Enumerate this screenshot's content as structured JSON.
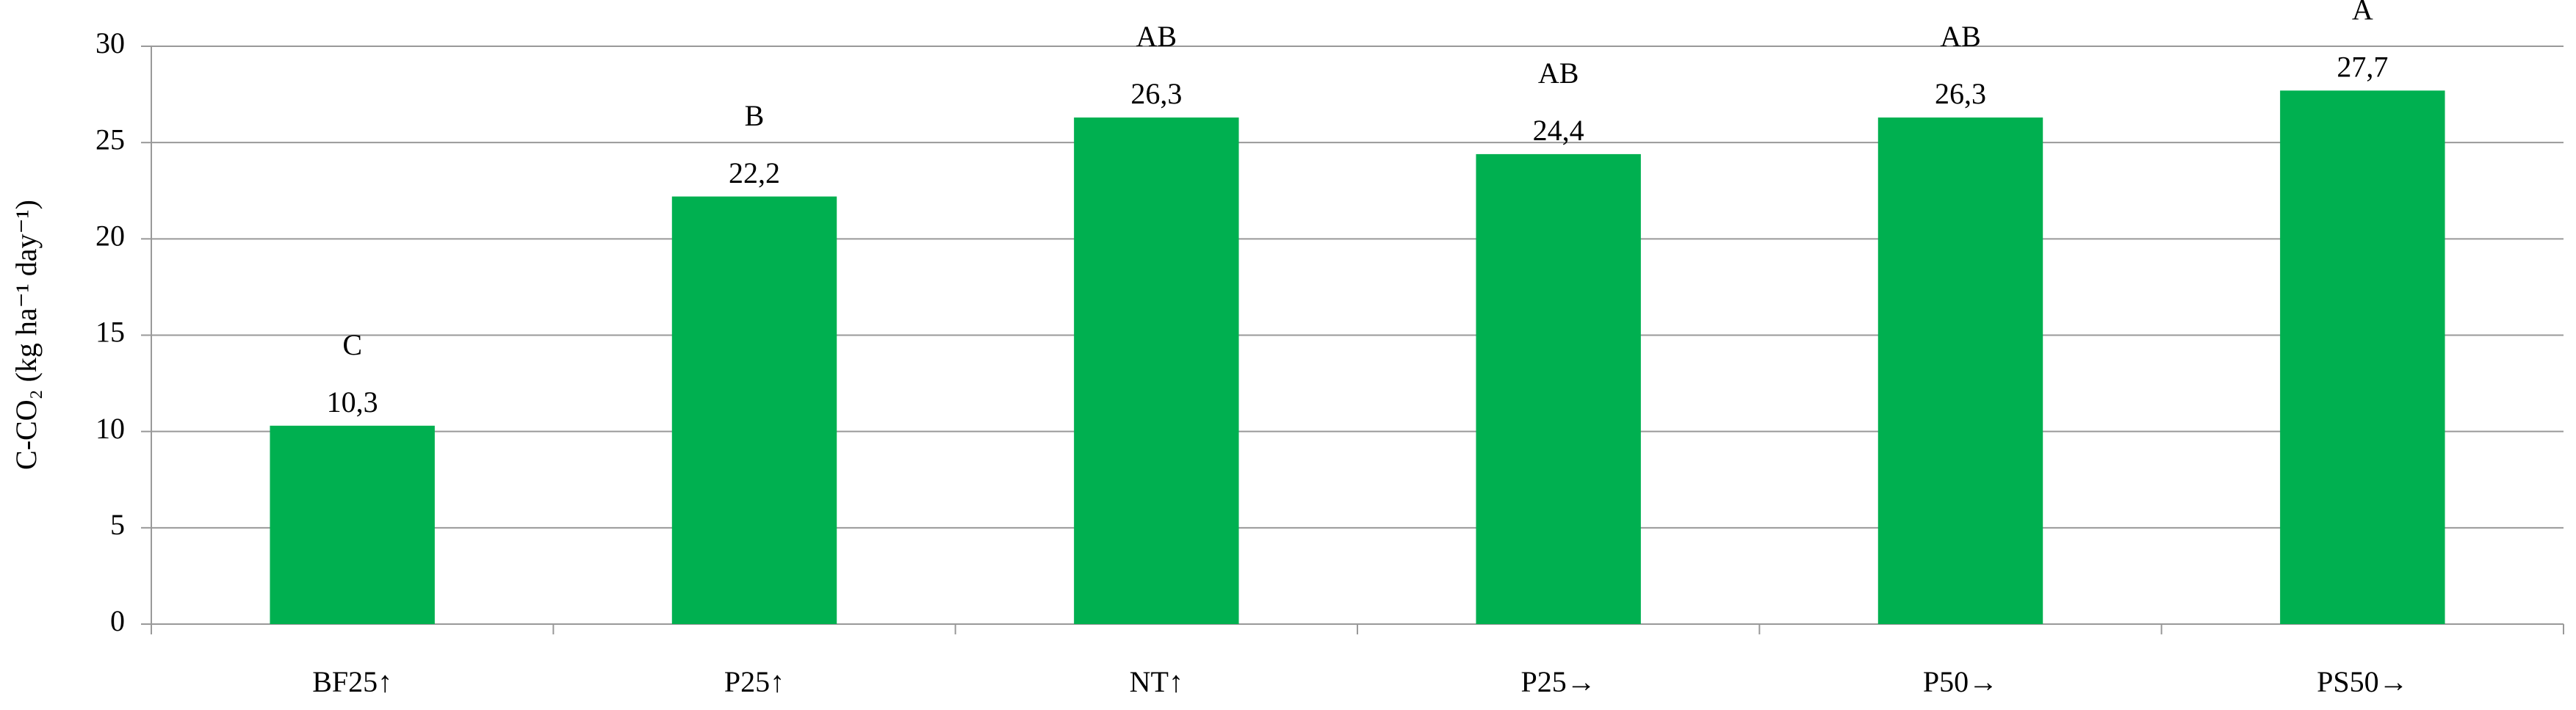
{
  "chart_data": {
    "type": "bar",
    "y_label": "C-CO₂ (kg ha⁻¹ day⁻¹)",
    "categories": [
      "BF25↑",
      "P25↑",
      "NT↑",
      "P25→",
      "P50→",
      "PS50→"
    ],
    "values": [
      10.3,
      22.2,
      26.3,
      24.4,
      26.3,
      27.7
    ],
    "value_labels": [
      "10,3",
      "22,2",
      "26,3",
      "24,4",
      "26,3",
      "27,7"
    ],
    "annotations": [
      "C",
      "B",
      "AB",
      "AB",
      "AB",
      "A"
    ],
    "color": "#00b050",
    "ylim": [
      0,
      30
    ],
    "yticks": [
      0,
      5,
      10,
      15,
      20,
      25,
      30
    ],
    "grid": true
  }
}
